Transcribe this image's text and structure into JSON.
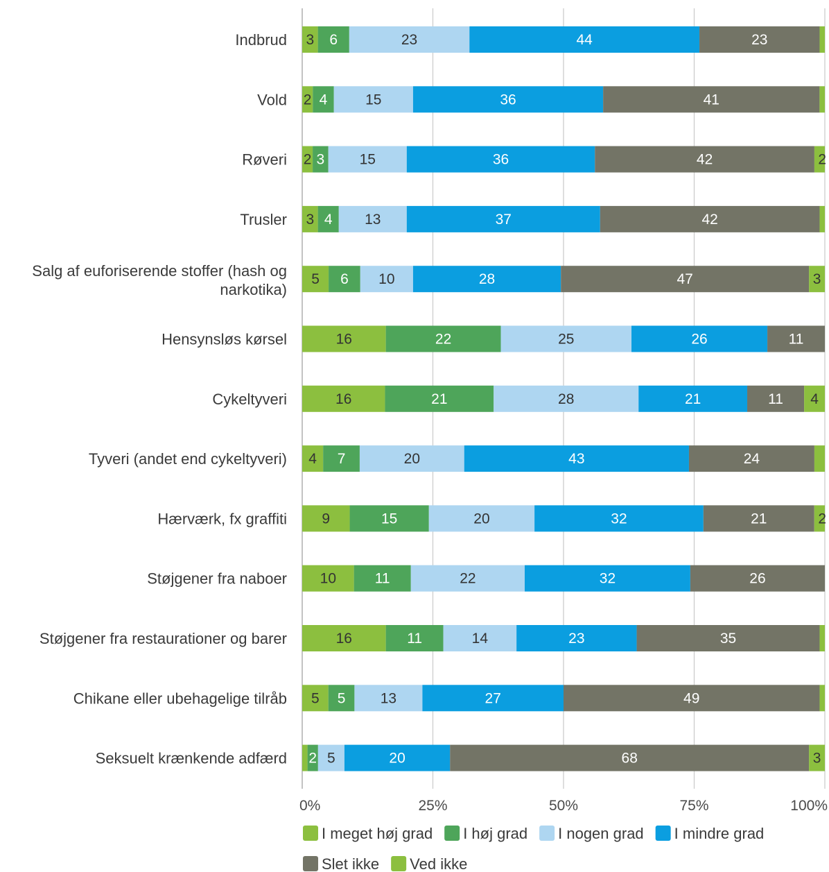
{
  "chart_data": {
    "type": "bar",
    "orientation": "horizontal",
    "stacked": true,
    "percent_stacked": true,
    "categories": [
      [
        "Indbrud"
      ],
      [
        "Vold"
      ],
      [
        "Røveri"
      ],
      [
        "Trusler"
      ],
      [
        "Salg af euforiserende stoffer (hash og",
        "narkotika)"
      ],
      [
        "Hensynsløs kørsel"
      ],
      [
        "Cykeltyveri"
      ],
      [
        "Tyveri (andet end cykeltyveri)"
      ],
      [
        "Hærværk, fx graffiti"
      ],
      [
        "Støjgener fra naboer"
      ],
      [
        "Støjgener fra restaurationer og barer"
      ],
      [
        "Chikane eller ubehagelige tilråb"
      ],
      [
        "Seksuelt krænkende adfærd"
      ]
    ],
    "series": [
      {
        "name": "I meget høj grad",
        "color": "#8cbf3f",
        "text_color": "#333333",
        "values": [
          3,
          2,
          2,
          3,
          5,
          16,
          16,
          4,
          9,
          10,
          16,
          5,
          1
        ]
      },
      {
        "name": "I høj grad",
        "color": "#4ea55a",
        "text_color": "#ffffff",
        "values": [
          6,
          4,
          3,
          4,
          6,
          22,
          21,
          7,
          15,
          11,
          11,
          5,
          2
        ]
      },
      {
        "name": "I nogen grad",
        "color": "#aed6f1",
        "text_color": "#333333",
        "values": [
          23,
          15,
          15,
          13,
          10,
          25,
          28,
          20,
          20,
          22,
          14,
          13,
          5
        ]
      },
      {
        "name": "I mindre grad",
        "color": "#0b9ee0",
        "text_color": "#ffffff",
        "values": [
          44,
          36,
          36,
          37,
          28,
          26,
          21,
          43,
          32,
          32,
          23,
          27,
          20
        ]
      },
      {
        "name": "Slet ikke",
        "color": "#737466",
        "text_color": "#ffffff",
        "values": [
          23,
          41,
          42,
          42,
          47,
          11,
          11,
          24,
          21,
          26,
          35,
          49,
          68
        ]
      },
      {
        "name": "Ved ikke",
        "color": "#8cbf3f",
        "text_color": "#333333",
        "values": [
          1,
          1,
          2,
          1,
          3,
          0,
          4,
          2,
          2,
          0,
          1,
          1,
          3
        ]
      }
    ],
    "shown_labels": [
      [
        "3",
        "6",
        "23",
        "44",
        "23",
        ""
      ],
      [
        "2",
        "4",
        "15",
        "36",
        "41",
        ""
      ],
      [
        "2",
        "3",
        "15",
        "36",
        "42",
        "2"
      ],
      [
        "3",
        "4",
        "13",
        "37",
        "42",
        ""
      ],
      [
        "5",
        "6",
        "10",
        "28",
        "47",
        "3"
      ],
      [
        "16",
        "22",
        "25",
        "26",
        "11",
        ""
      ],
      [
        "16",
        "21",
        "28",
        "21",
        "11",
        "4"
      ],
      [
        "4",
        "7",
        "20",
        "43",
        "24",
        ""
      ],
      [
        "9",
        "15",
        "20",
        "32",
        "21",
        "2"
      ],
      [
        "10",
        "11",
        "22",
        "32",
        "26",
        ""
      ],
      [
        "16",
        "11",
        "14",
        "23",
        "35",
        ""
      ],
      [
        "5",
        "5",
        "13",
        "27",
        "49",
        ""
      ],
      [
        "",
        "2",
        "5",
        "20",
        "68",
        "3"
      ]
    ],
    "x_ticks": [
      "0%",
      "25%",
      "50%",
      "75%",
      "100%"
    ],
    "xlim": [
      0,
      100
    ],
    "grid": "vertical",
    "legend_position": "bottom",
    "title": "",
    "xlabel": "",
    "ylabel": ""
  }
}
